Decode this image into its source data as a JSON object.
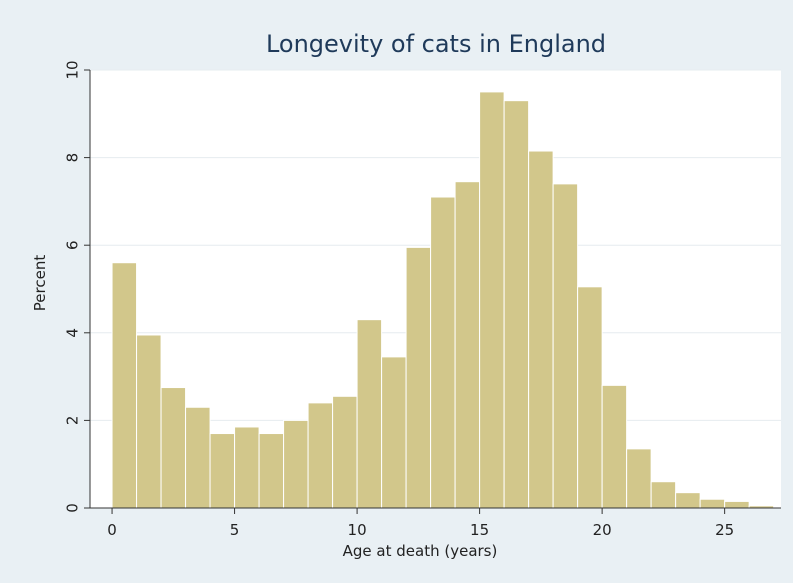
{
  "chart_data": {
    "type": "bar",
    "title": "Longevity of cats in England",
    "xlabel": "Age at death (years)",
    "ylabel": "Percent",
    "bin_width": 1,
    "bin_starts": [
      0,
      1,
      2,
      3,
      4,
      5,
      6,
      7,
      8,
      9,
      10,
      11,
      12,
      13,
      14,
      15,
      16,
      17,
      18,
      19,
      20,
      21,
      22,
      23,
      24,
      25,
      26
    ],
    "values": [
      5.6,
      3.95,
      2.75,
      2.3,
      1.7,
      1.85,
      1.7,
      2.0,
      2.4,
      2.55,
      4.3,
      3.45,
      5.95,
      7.1,
      7.45,
      9.5,
      9.3,
      8.15,
      7.4,
      5.05,
      2.8,
      1.35,
      0.6,
      0.35,
      0.2,
      0.15,
      0.05
    ],
    "xlim": [
      -0.9,
      27.3
    ],
    "ylim": [
      0,
      10
    ],
    "xticks": [
      0,
      5,
      10,
      15,
      20,
      25
    ],
    "yticks": [
      0,
      2,
      4,
      6,
      8,
      10
    ],
    "grid": true,
    "colors": {
      "bar_fill": "#d2c78b",
      "bar_stroke": "#ffffff",
      "plot_bg": "#ffffff",
      "outer_bg": "#e9f0f4",
      "title": "#1f3a5a",
      "grid": "#e6ecef"
    }
  }
}
